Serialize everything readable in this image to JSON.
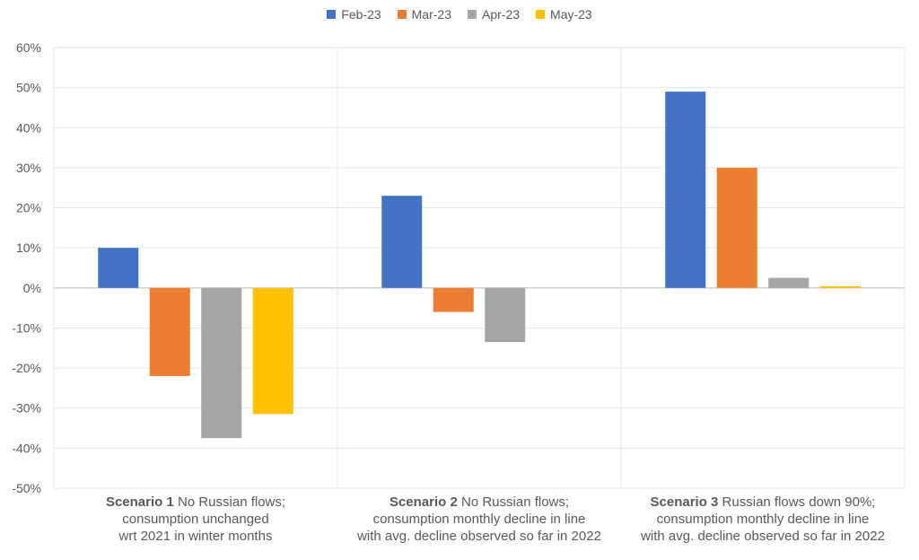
{
  "chart_data": {
    "type": "bar",
    "categories": [
      {
        "bold": "Scenario 1",
        "rest": " No Russian flows; consumption unchanged wrt 2021 in winter months"
      },
      {
        "bold": "Scenario 2",
        "rest": " No Russian flows; consumption monthly decline in line with avg. decline observed so far in 2022"
      },
      {
        "bold": "Scenario 3",
        "rest": " Russian flows down 90%; consumption monthly decline in line with avg. decline observed so far in 2022"
      }
    ],
    "category_lines": [
      [
        {
          "bold": "Scenario 1",
          "text": " No Russian flows;"
        },
        {
          "text": "consumption unchanged"
        },
        {
          "text": "wrt 2021 in winter months"
        }
      ],
      [
        {
          "bold": "Scenario 2",
          "text": " No Russian flows;"
        },
        {
          "text": "consumption monthly decline in line"
        },
        {
          "text": "with avg. decline observed so far in 2022"
        }
      ],
      [
        {
          "bold": "Scenario 3",
          "text": " Russian flows down 90%;"
        },
        {
          "text": "consumption monthly decline in line"
        },
        {
          "text": "with avg. decline observed so far in 2022"
        }
      ]
    ],
    "series": [
      {
        "name": "Feb-23",
        "color": "#4472C4",
        "values": [
          10,
          23,
          49
        ]
      },
      {
        "name": "Mar-23",
        "color": "#ED7D31",
        "values": [
          -22,
          -6,
          30
        ]
      },
      {
        "name": "Apr-23",
        "color": "#A5A5A5",
        "values": [
          -37.5,
          -13.5,
          2.5
        ]
      },
      {
        "name": "May-23",
        "color": "#FFC000",
        "values": [
          -31.5,
          null,
          0.4
        ]
      }
    ],
    "ylim": [
      -50,
      60
    ],
    "yticks": [
      60,
      50,
      40,
      30,
      20,
      10,
      0,
      -10,
      -20,
      -30,
      -40,
      -50
    ],
    "ytick_labels": [
      "60%",
      "50%",
      "40%",
      "30%",
      "20%",
      "10%",
      "0%",
      "-10%",
      "-20%",
      "-30%",
      "-40%",
      "-50%"
    ],
    "grid": true,
    "legend_position": "top-center",
    "title": "",
    "xlabel": "",
    "ylabel": ""
  }
}
